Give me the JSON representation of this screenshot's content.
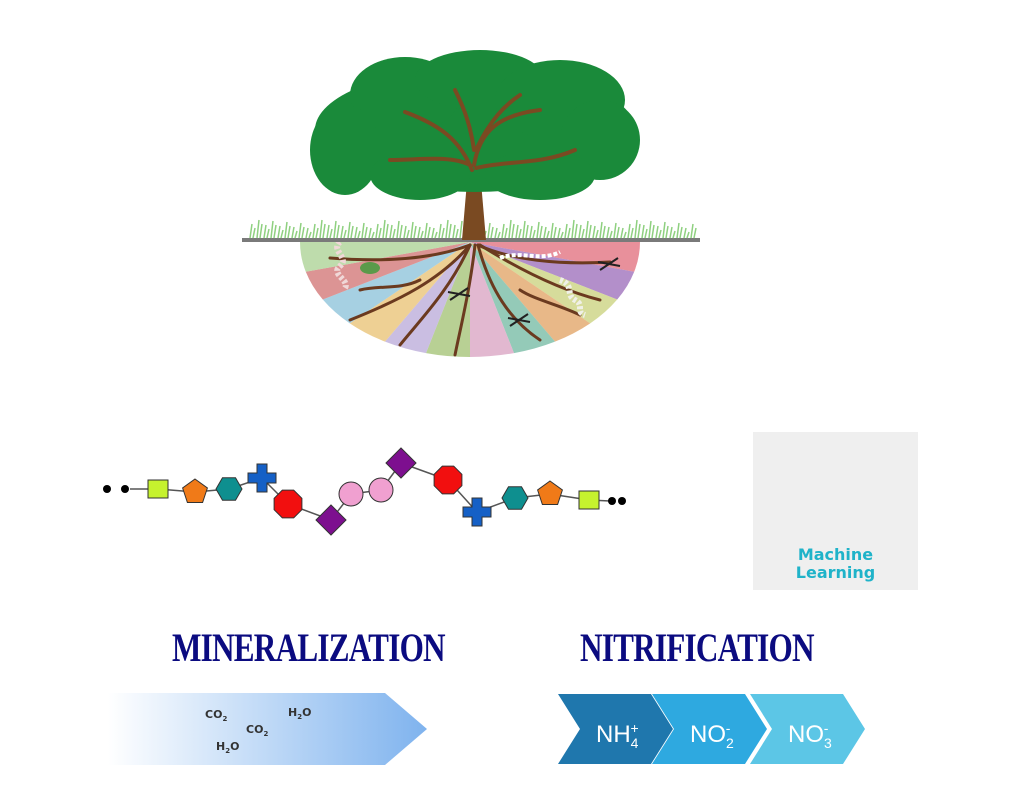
{
  "labels": {
    "mineralization": "MINERALIZATION",
    "nitrification": "NITRIFICATION"
  },
  "machine_learning": {
    "line1": "Machine",
    "line2": "Learning",
    "icon": "circuit-gear-icon",
    "accent": "#1fb3c9"
  },
  "mineralization_arrow": {
    "molecules": [
      {
        "base": "CO",
        "sub": "2"
      },
      {
        "base": "H",
        "sub": "2",
        "tail": "O"
      },
      {
        "base": "CO",
        "sub": "2"
      },
      {
        "base": "H",
        "sub": "2",
        "tail": "O"
      }
    ],
    "color": "#7fb3ee"
  },
  "nitrification_chain": [
    {
      "base": "NH",
      "sub": "4",
      "sup": "+",
      "color": "#1f77ad"
    },
    {
      "base": "NO",
      "sub": "2",
      "sup": "-",
      "color": "#2ea9e0"
    },
    {
      "base": "NO",
      "sub": "3",
      "sup": "-",
      "color": "#5cc6e6"
    }
  ],
  "polymer_chain": {
    "shapes": [
      "square",
      "pentagon",
      "hexagon",
      "cross",
      "octagon",
      "diamond",
      "circle",
      "circle",
      "diamond",
      "octagon",
      "cross",
      "hexagon",
      "pentagon",
      "square"
    ],
    "colors": [
      "#c6f22e",
      "#f07a18",
      "#0e8f8f",
      "#1560c6",
      "#f20f0f",
      "#7d0f8f",
      "#f0a0d0",
      "#f0a0d0",
      "#7d0f8f",
      "#f20f0f",
      "#1560c6",
      "#0e8f8f",
      "#f07a18",
      "#c6f22e"
    ]
  },
  "tree": {
    "canopy_color": "#1a8a3a",
    "trunk_color": "#7a4a22",
    "soil_colors": [
      "#e06b7a",
      "#9a6ab8",
      "#c8d07a",
      "#e0a060",
      "#70b8a0",
      "#d8a0c0",
      "#a0c070",
      "#b8a8d8",
      "#e8c070",
      "#88c0d8",
      "#d07070",
      "#a8d090"
    ]
  }
}
